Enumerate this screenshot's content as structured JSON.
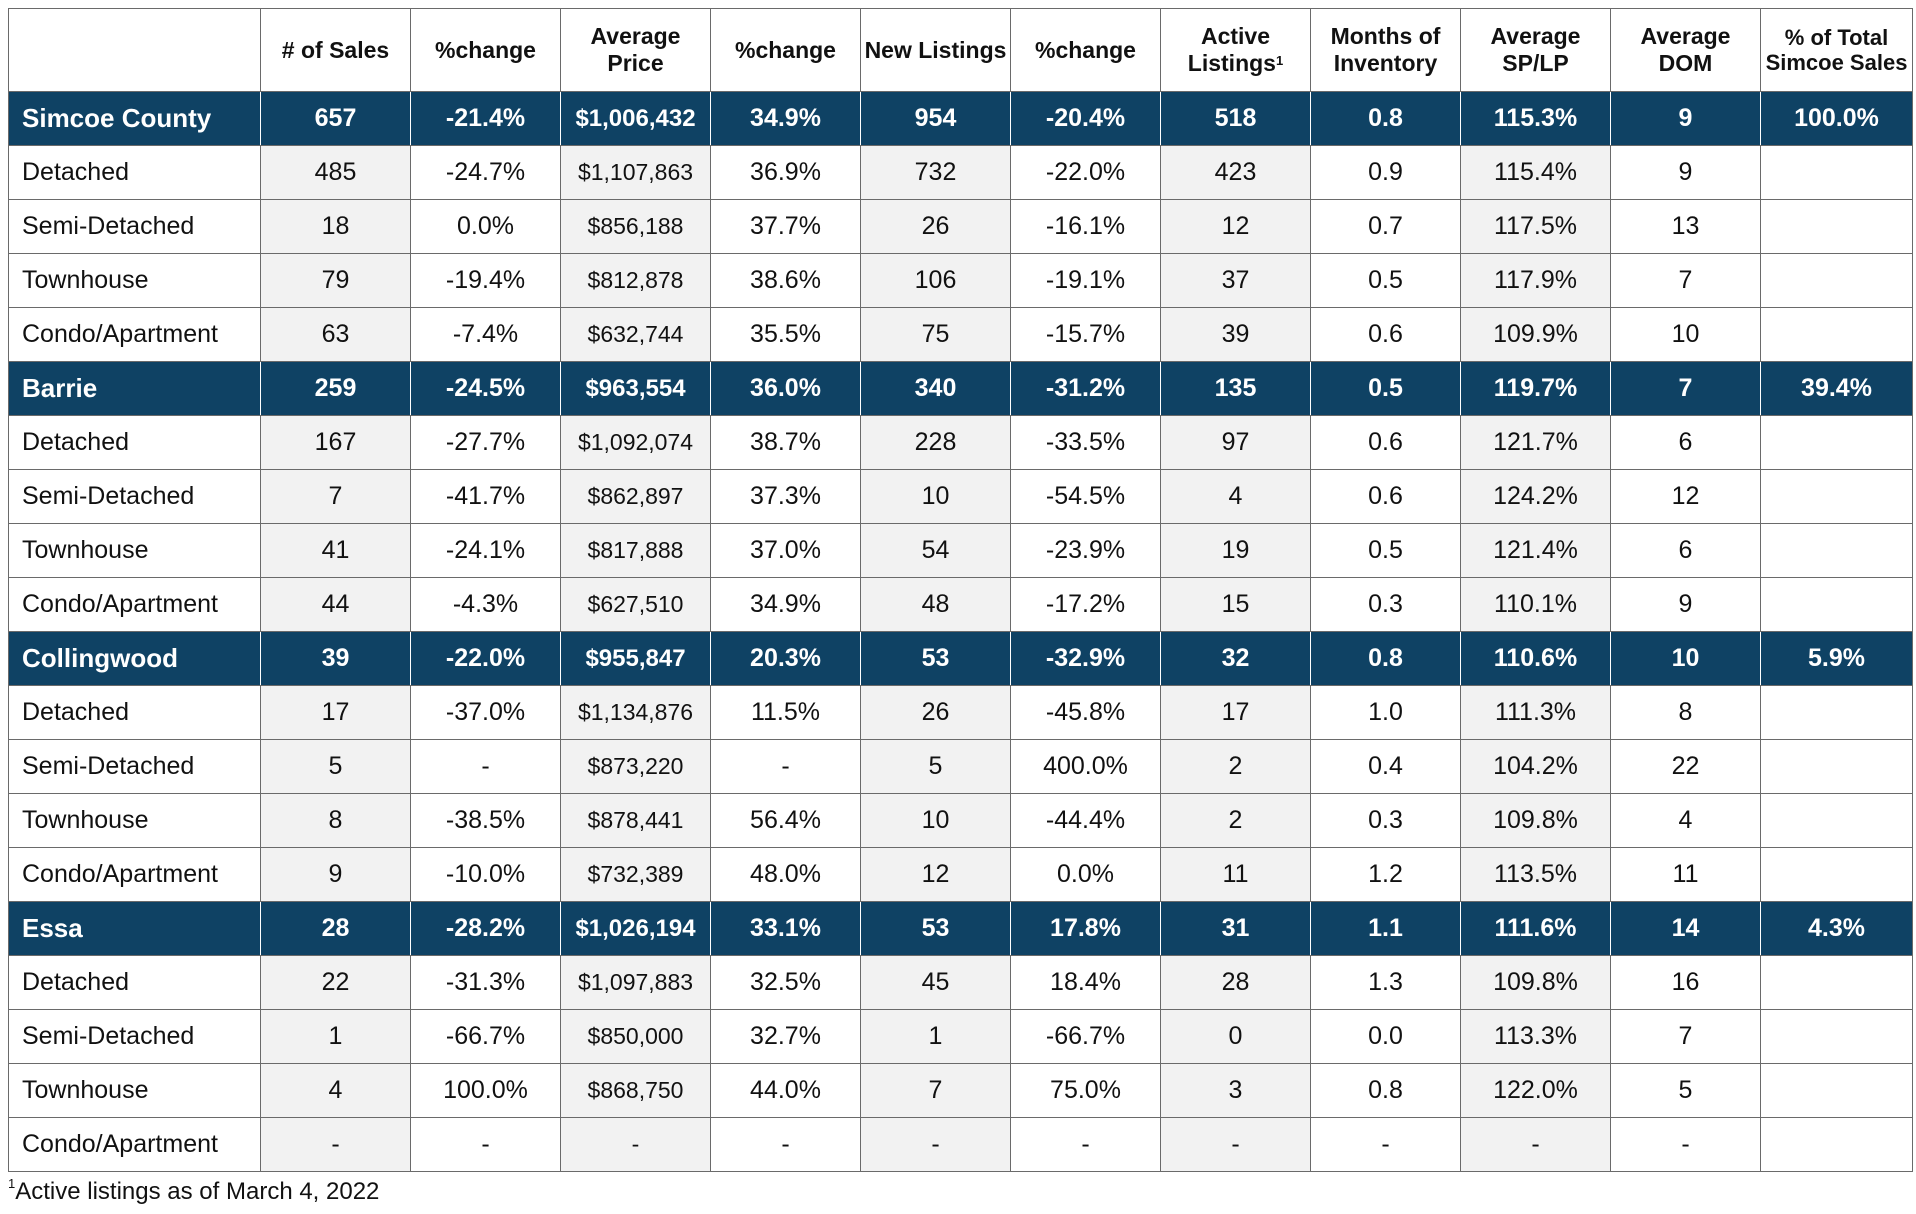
{
  "table": {
    "headers": {
      "blank": "",
      "sales": "# of Sales",
      "sales_change": "%change",
      "avg_price": "Average Price",
      "price_change": "%change",
      "new_listings": "New Listings",
      "listings_change": "%change",
      "active_listings": "Active Listings",
      "active_listings_note": "1",
      "months_inventory": "Months of Inventory",
      "sp_lp": "Average SP/LP",
      "dom": "Average DOM",
      "pct_total": "% of Total Simcoe Sales"
    },
    "rows": [
      {
        "kind": "region",
        "name": "Simcoe County",
        "cells": [
          "657",
          "-21.4%",
          "$1,006,432",
          "34.9%",
          "954",
          "-20.4%",
          "518",
          "0.8",
          "115.3%",
          "9",
          "100.0%"
        ]
      },
      {
        "kind": "type",
        "name": "Detached",
        "cells": [
          "485",
          "-24.7%",
          "$1,107,863",
          "36.9%",
          "732",
          "-22.0%",
          "423",
          "0.9",
          "115.4%",
          "9",
          ""
        ]
      },
      {
        "kind": "type",
        "name": "Semi-Detached",
        "cells": [
          "18",
          "0.0%",
          "$856,188",
          "37.7%",
          "26",
          "-16.1%",
          "12",
          "0.7",
          "117.5%",
          "13",
          ""
        ]
      },
      {
        "kind": "type",
        "name": "Townhouse",
        "cells": [
          "79",
          "-19.4%",
          "$812,878",
          "38.6%",
          "106",
          "-19.1%",
          "37",
          "0.5",
          "117.9%",
          "7",
          ""
        ]
      },
      {
        "kind": "type",
        "name": "Condo/Apartment",
        "cells": [
          "63",
          "-7.4%",
          "$632,744",
          "35.5%",
          "75",
          "-15.7%",
          "39",
          "0.6",
          "109.9%",
          "10",
          ""
        ]
      },
      {
        "kind": "region",
        "name": "Barrie",
        "cells": [
          "259",
          "-24.5%",
          "$963,554",
          "36.0%",
          "340",
          "-31.2%",
          "135",
          "0.5",
          "119.7%",
          "7",
          "39.4%"
        ]
      },
      {
        "kind": "type",
        "name": "Detached",
        "cells": [
          "167",
          "-27.7%",
          "$1,092,074",
          "38.7%",
          "228",
          "-33.5%",
          "97",
          "0.6",
          "121.7%",
          "6",
          ""
        ]
      },
      {
        "kind": "type",
        "name": "Semi-Detached",
        "cells": [
          "7",
          "-41.7%",
          "$862,897",
          "37.3%",
          "10",
          "-54.5%",
          "4",
          "0.6",
          "124.2%",
          "12",
          ""
        ]
      },
      {
        "kind": "type",
        "name": "Townhouse",
        "cells": [
          "41",
          "-24.1%",
          "$817,888",
          "37.0%",
          "54",
          "-23.9%",
          "19",
          "0.5",
          "121.4%",
          "6",
          ""
        ]
      },
      {
        "kind": "type",
        "name": "Condo/Apartment",
        "cells": [
          "44",
          "-4.3%",
          "$627,510",
          "34.9%",
          "48",
          "-17.2%",
          "15",
          "0.3",
          "110.1%",
          "9",
          ""
        ]
      },
      {
        "kind": "region",
        "name": "Collingwood",
        "cells": [
          "39",
          "-22.0%",
          "$955,847",
          "20.3%",
          "53",
          "-32.9%",
          "32",
          "0.8",
          "110.6%",
          "10",
          "5.9%"
        ]
      },
      {
        "kind": "type",
        "name": "Detached",
        "cells": [
          "17",
          "-37.0%",
          "$1,134,876",
          "11.5%",
          "26",
          "-45.8%",
          "17",
          "1.0",
          "111.3%",
          "8",
          ""
        ]
      },
      {
        "kind": "type",
        "name": "Semi-Detached",
        "cells": [
          "5",
          "-",
          "$873,220",
          "-",
          "5",
          "400.0%",
          "2",
          "0.4",
          "104.2%",
          "22",
          ""
        ]
      },
      {
        "kind": "type",
        "name": "Townhouse",
        "cells": [
          "8",
          "-38.5%",
          "$878,441",
          "56.4%",
          "10",
          "-44.4%",
          "2",
          "0.3",
          "109.8%",
          "4",
          ""
        ]
      },
      {
        "kind": "type",
        "name": "Condo/Apartment",
        "cells": [
          "9",
          "-10.0%",
          "$732,389",
          "48.0%",
          "12",
          "0.0%",
          "11",
          "1.2",
          "113.5%",
          "11",
          ""
        ]
      },
      {
        "kind": "region",
        "name": "Essa",
        "cells": [
          "28",
          "-28.2%",
          "$1,026,194",
          "33.1%",
          "53",
          "17.8%",
          "31",
          "1.1",
          "111.6%",
          "14",
          "4.3%"
        ]
      },
      {
        "kind": "type",
        "name": "Detached",
        "cells": [
          "22",
          "-31.3%",
          "$1,097,883",
          "32.5%",
          "45",
          "18.4%",
          "28",
          "1.3",
          "109.8%",
          "16",
          ""
        ]
      },
      {
        "kind": "type",
        "name": "Semi-Detached",
        "cells": [
          "1",
          "-66.7%",
          "$850,000",
          "32.7%",
          "1",
          "-66.7%",
          "0",
          "0.0",
          "113.3%",
          "7",
          ""
        ]
      },
      {
        "kind": "type",
        "name": "Townhouse",
        "cells": [
          "4",
          "100.0%",
          "$868,750",
          "44.0%",
          "7",
          "75.0%",
          "3",
          "0.8",
          "122.0%",
          "5",
          ""
        ]
      },
      {
        "kind": "type",
        "name": "Condo/Apartment",
        "cells": [
          "-",
          "-",
          "-",
          "-",
          "-",
          "-",
          "-",
          "-",
          "-",
          "-",
          ""
        ]
      }
    ]
  },
  "footnote": {
    "marker": "1",
    "text": "Active listings as of March 4, 2022"
  },
  "colors": {
    "region_row_bg": "#0f4264",
    "region_row_text": "#ffffff",
    "shaded_cell_bg": "#f2f2f2",
    "grid_line": "#6a6a6a"
  }
}
